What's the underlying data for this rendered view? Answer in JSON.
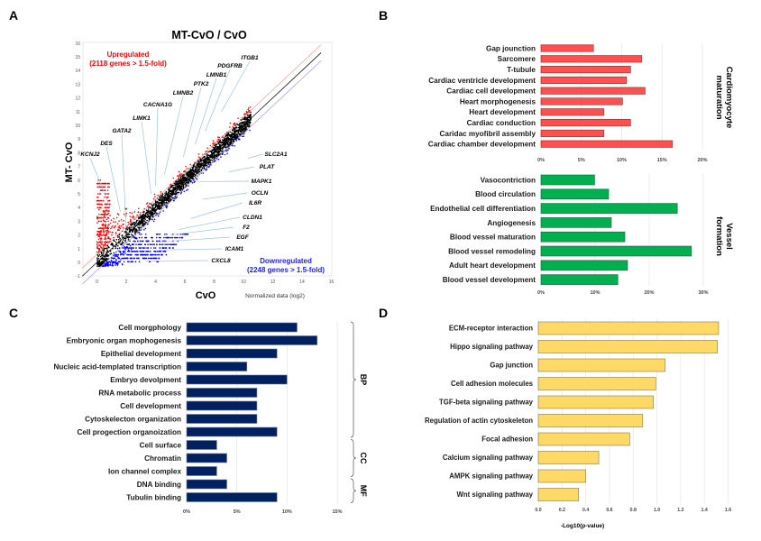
{
  "panels": {
    "A": {
      "letter": "A"
    },
    "B": {
      "letter": "B"
    },
    "C": {
      "letter": "C"
    },
    "D": {
      "letter": "D"
    }
  },
  "colors": {
    "up": "#ff0000",
    "down": "#0000ff",
    "neutral": "#000000",
    "cardio_bar": "#ff5050",
    "vessel_bar": "#00b050",
    "go_bar": "#002060",
    "kegg_bar": "#ffd966",
    "leader_line": "#9dc3e6",
    "grid": "#e6e6e6"
  },
  "chart_data": [
    {
      "id": "A",
      "type": "scatter",
      "title": "MT-CvO / CvO",
      "xlabel": "CvO",
      "ylabel": "MT- CvO",
      "x_note": "Normalized data (log2)",
      "xlim": [
        -1,
        16
      ],
      "ylim": [
        -1,
        16
      ],
      "xticks": [
        "0",
        "2",
        "4",
        "6",
        "8",
        "10",
        "12",
        "14",
        "16"
      ],
      "yticks": [
        "-1",
        "0",
        "1",
        "2",
        "3",
        "4",
        "5",
        "6",
        "7",
        "8",
        "9",
        "10",
        "11",
        "12",
        "13",
        "14",
        "15",
        "16"
      ],
      "reference_lines": [
        {
          "name": "1.5-fold up",
          "slope": 1,
          "offset_log2": 0.585,
          "color": "#ff9999"
        },
        {
          "name": "identity",
          "slope": 1,
          "offset_log2": 0,
          "color": "#000000"
        },
        {
          "name": "1.5-fold down",
          "slope": 1,
          "offset_log2": -0.585,
          "color": "#9999ff"
        }
      ],
      "annotations": {
        "up": {
          "line1": "Upregulated",
          "line2": "(2118 genes > 1.5-fold)",
          "count": 2118
        },
        "down": {
          "line1": "Downregulated",
          "line2": "(2248 genes > 1.5-fold)",
          "count": 2248
        }
      },
      "series": [
        {
          "name": "Upregulated",
          "color": "#ff0000",
          "n_genes": 2118
        },
        {
          "name": "Unchanged",
          "color": "#000000"
        },
        {
          "name": "Downregulated",
          "color": "#0000ff",
          "n_genes": 2248
        }
      ],
      "labeled_genes_up": [
        {
          "gene": "ITGB1",
          "x": 8.5,
          "y": 11.0
        },
        {
          "gene": "PDGFRB",
          "x": 7.4,
          "y": 9.6
        },
        {
          "gene": "LMNB1",
          "x": 6.7,
          "y": 8.6
        },
        {
          "gene": "PTK2",
          "x": 5.9,
          "y": 7.7
        },
        {
          "gene": "LMNB2",
          "x": 4.6,
          "y": 6.4
        },
        {
          "gene": "CACNA1G",
          "x": 4.0,
          "y": 5.6
        },
        {
          "gene": "LIMK1",
          "x": 3.7,
          "y": 5.0
        },
        {
          "gene": "GATA2",
          "x": 2.0,
          "y": 2.3
        },
        {
          "gene": "DES",
          "x": 1.6,
          "y": 3.7
        },
        {
          "gene": "KCNJ2",
          "x": 0.9,
          "y": 4.0
        }
      ],
      "labeled_genes_down": [
        {
          "gene": "SLC2A1",
          "x": 10.3,
          "y": 7.6
        },
        {
          "gene": "PLAT",
          "x": 9.0,
          "y": 6.6
        },
        {
          "gene": "MAPK1",
          "x": 6.8,
          "y": 5.9
        },
        {
          "gene": "OCLN",
          "x": 7.2,
          "y": 4.6
        },
        {
          "gene": "IL6R",
          "x": 6.4,
          "y": 3.2
        },
        {
          "gene": "CLDN1",
          "x": 5.6,
          "y": 2.4
        },
        {
          "gene": "F2",
          "x": 5.0,
          "y": 2.0
        },
        {
          "gene": "EGF",
          "x": 4.3,
          "y": 1.5
        },
        {
          "gene": "ICAM1",
          "x": 4.2,
          "y": 0.9
        },
        {
          "gene": "CXCL8",
          "x": 3.3,
          "y": 0.1
        }
      ]
    },
    {
      "id": "B1",
      "type": "bar",
      "orientation": "horizontal",
      "group_label_line1": "Cardiomyocyte",
      "group_label_line2": "maturation",
      "categories": [
        "Gap jounction",
        "Sarcomere",
        "T-tubule",
        "Cardiac ventricle development",
        "Cardiac cell development",
        "Heart morphogenesis",
        "Heart development",
        "Cardiac conduction",
        "Caridac myofibril assembly",
        "Cardiac chamber development"
      ],
      "values": [
        6.5,
        12.5,
        11.1,
        10.6,
        12.9,
        10.1,
        7.8,
        11.1,
        7.8,
        16.3
      ],
      "xlim": [
        0,
        20
      ],
      "xticks": [
        "0%",
        "5%",
        "10%",
        "15%",
        "20%"
      ],
      "unit": "%",
      "color": "#ff5050"
    },
    {
      "id": "B2",
      "type": "bar",
      "orientation": "horizontal",
      "group_label_line1": "Vessel",
      "group_label_line2": "formation",
      "categories": [
        "Vasocontriction",
        "Blood circulation",
        "Endothelial cell differentiation",
        "Angiogenesis",
        "Blood vessel maturation",
        "Blood vessel remodeling",
        "Adult heart development",
        "Blood vessel development"
      ],
      "values": [
        9.9,
        12.5,
        25.2,
        13.0,
        15.5,
        27.8,
        16.0,
        14.2
      ],
      "xlim": [
        0,
        30
      ],
      "xticks": [
        "0%",
        "10%",
        "20%",
        "30%"
      ],
      "unit": "%",
      "color": "#00b050"
    },
    {
      "id": "C",
      "type": "bar",
      "orientation": "horizontal",
      "categories": [
        "Cell morgphology",
        "Embryonic organ mophogenesis",
        "Epithelial development",
        "Nucleic acid-templated transcription",
        "Embryo devolpment",
        "RNA metabolic process",
        "Cell development",
        "Cytoskelecton organization",
        "Cell progection organoization",
        "Cell surface",
        "Chromatin",
        "Ion channel complex",
        "DNA binding",
        "Tubulin binding"
      ],
      "values": [
        11,
        13,
        9,
        6,
        10,
        7,
        7,
        7,
        9,
        3,
        4,
        3,
        4,
        9
      ],
      "groups": [
        {
          "label": "BP",
          "start": 0,
          "end": 8
        },
        {
          "label": "CC",
          "start": 9,
          "end": 11
        },
        {
          "label": "MF",
          "start": 12,
          "end": 13
        }
      ],
      "xlim": [
        0,
        15
      ],
      "xticks": [
        "0%",
        "5%",
        "10%",
        "15%"
      ],
      "unit": "%",
      "color": "#002060"
    },
    {
      "id": "D",
      "type": "bar",
      "orientation": "horizontal",
      "xlabel": "-Log10(p-value)",
      "categories": [
        "ECM-receptor interaction",
        "Hippo signaling pathway",
        "Gap junction",
        "Cell adhesion molecules",
        "TGF-beta signaling pathway",
        "Regulation of actin cytoskeleton",
        "Focal adhesion",
        "Calcium signaling pathway",
        "AMPK signaling pathway",
        "Wnt signaling pathway"
      ],
      "values": [
        1.52,
        1.51,
        1.07,
        0.99,
        0.97,
        0.88,
        0.77,
        0.51,
        0.4,
        0.34
      ],
      "xlim": [
        0,
        1.6
      ],
      "xticks": [
        "0.0",
        "0.2",
        "0.4",
        "0.6",
        "0.8",
        "1.0",
        "1.2",
        "1.4",
        "1.6"
      ],
      "color": "#ffd966"
    }
  ]
}
